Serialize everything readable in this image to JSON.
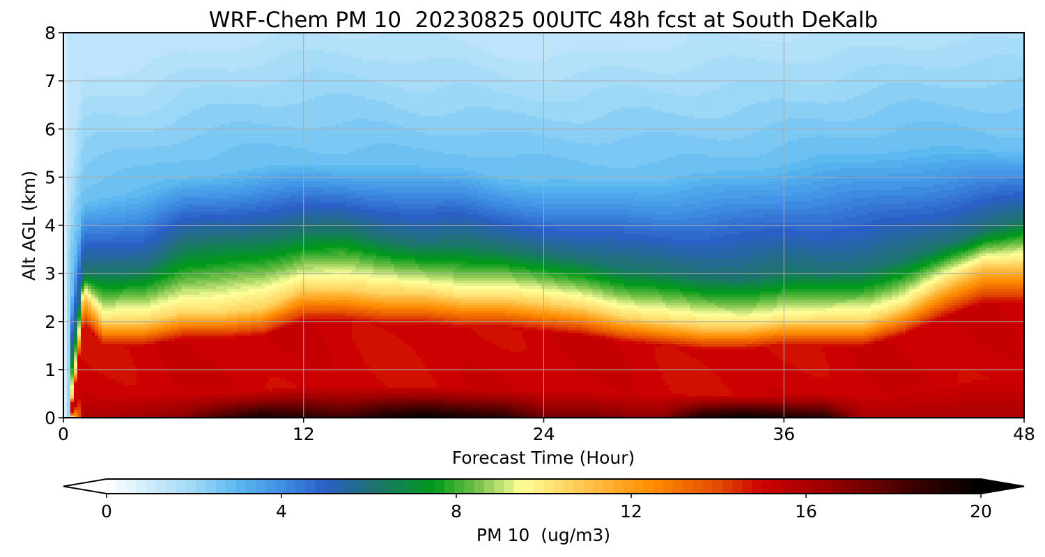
{
  "chart_data": {
    "type": "heatmap",
    "title": "WRF-Chem PM 10  20230825 00UTC 48h fcst at South DeKalb",
    "xlabel": "Forecast Time (Hour)",
    "ylabel": "Alt AGL (km)",
    "x_ticks": [
      0,
      12,
      24,
      36,
      48
    ],
    "y_ticks": [
      0,
      1,
      2,
      3,
      4,
      5,
      6,
      7,
      8
    ],
    "xlim": [
      0,
      48
    ],
    "ylim": [
      0,
      8
    ],
    "grid": true,
    "colorbar": {
      "label": "PM 10  (ug/m3)",
      "orientation": "horizontal",
      "placement": "bottom",
      "ticks": [
        0,
        4,
        8,
        12,
        16,
        20
      ],
      "range": [
        0,
        20
      ],
      "extend": "both",
      "levels": 88,
      "stops": [
        {
          "v": 0,
          "c": "#ffffff"
        },
        {
          "v": 2,
          "c": "#9ed8f7"
        },
        {
          "v": 3,
          "c": "#5ab8f0"
        },
        {
          "v": 4,
          "c": "#3f8fe4"
        },
        {
          "v": 5,
          "c": "#2a5fc6"
        },
        {
          "v": 6,
          "c": "#1f6f78"
        },
        {
          "v": 7.5,
          "c": "#009a1a"
        },
        {
          "v": 8.5,
          "c": "#79c24a"
        },
        {
          "v": 9.5,
          "c": "#ffff99"
        },
        {
          "v": 11,
          "c": "#ffc24a"
        },
        {
          "v": 12.5,
          "c": "#ff8c00"
        },
        {
          "v": 14,
          "c": "#e24a00"
        },
        {
          "v": 15,
          "c": "#cc0000"
        },
        {
          "v": 16.5,
          "c": "#9a0000"
        },
        {
          "v": 18.5,
          "c": "#3a0000"
        },
        {
          "v": 20,
          "c": "#000000"
        }
      ]
    },
    "field_description": {
      "x_samples_hour": [
        0,
        0.5,
        1,
        2,
        4,
        6,
        8,
        10,
        12,
        14,
        16,
        18,
        20,
        22,
        24,
        26,
        28,
        30,
        32,
        34,
        36,
        38,
        40,
        42,
        44,
        46,
        48
      ],
      "high_pm_top_km": [
        0,
        0.5,
        2.6,
        2.0,
        2.0,
        2.2,
        2.2,
        2.3,
        2.7,
        2.7,
        2.6,
        2.6,
        2.5,
        2.5,
        2.4,
        2.3,
        2.1,
        2.0,
        1.9,
        1.9,
        2.0,
        2.0,
        2.0,
        2.3,
        2.8,
        3.2,
        3.2
      ],
      "green_top_km": [
        0,
        1.5,
        3.0,
        3.0,
        3.1,
        3.6,
        3.7,
        3.8,
        3.9,
        3.9,
        3.7,
        3.6,
        3.6,
        3.5,
        3.4,
        3.3,
        3.1,
        3.0,
        2.9,
        2.9,
        3.0,
        3.0,
        3.1,
        3.3,
        3.6,
        3.9,
        4.1
      ],
      "blue_top_km": [
        0,
        3.0,
        4.5,
        4.6,
        4.7,
        5.0,
        5.1,
        5.2,
        5.3,
        5.3,
        5.3,
        5.2,
        5.2,
        5.0,
        4.9,
        4.9,
        5.0,
        5.0,
        5.1,
        5.2,
        5.3,
        5.4,
        5.5,
        5.6,
        5.6,
        5.6,
        5.6
      ],
      "surface_max_value": [
        0,
        10,
        16,
        16,
        16.5,
        17,
        18.5,
        19.5,
        19,
        18.5,
        19.5,
        20,
        19.5,
        19,
        17.5,
        17.5,
        17,
        17,
        19.5,
        20,
        19.5,
        19,
        16,
        16,
        16,
        16,
        16
      ]
    }
  }
}
